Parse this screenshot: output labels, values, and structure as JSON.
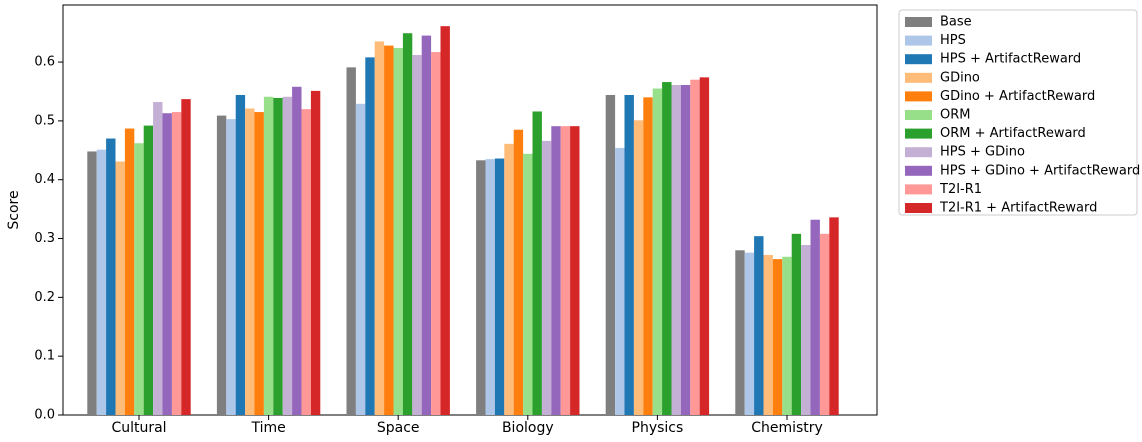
{
  "chart_data": {
    "type": "bar",
    "ylabel": "Score",
    "categories": [
      "Cultural",
      "Time",
      "Space",
      "Biology",
      "Physics",
      "Chemistry"
    ],
    "ylim": [
      0,
      0.697
    ],
    "yticks": [
      {
        "value": 0,
        "label": "0.0"
      },
      0.1,
      0.2,
      0.3,
      0.4,
      0.5,
      0.6
    ],
    "legend": "outside-upper-right",
    "series": [
      {
        "name": "Base",
        "color": "#7f7f7f",
        "values": [
          0.448,
          0.509,
          0.591,
          0.433,
          0.544,
          0.28
        ]
      },
      {
        "name": "HPS",
        "color": "#aec7e8",
        "values": [
          0.451,
          0.503,
          0.529,
          0.435,
          0.454,
          0.276
        ]
      },
      {
        "name": "HPS + ArtifactReward",
        "color": "#1f77b4",
        "values": [
          0.47,
          0.544,
          0.608,
          0.436,
          0.544,
          0.304
        ]
      },
      {
        "name": "GDino",
        "color": "#ffbb78",
        "values": [
          0.431,
          0.521,
          0.635,
          0.461,
          0.501,
          0.272
        ]
      },
      {
        "name": "GDino + ArtifactReward",
        "color": "#ff7f0e",
        "values": [
          0.487,
          0.515,
          0.628,
          0.485,
          0.54,
          0.265
        ]
      },
      {
        "name": "ORM",
        "color": "#98df8a",
        "values": [
          0.462,
          0.541,
          0.624,
          0.444,
          0.555,
          0.269
        ]
      },
      {
        "name": "ORM + ArtifactReward",
        "color": "#2ca02c",
        "values": [
          0.492,
          0.539,
          0.649,
          0.516,
          0.566,
          0.308
        ]
      },
      {
        "name": "HPS + GDino",
        "color": "#c5b0d5",
        "values": [
          0.532,
          0.541,
          0.612,
          0.466,
          0.561,
          0.289
        ]
      },
      {
        "name": "HPS + GDino + ArtifactReward",
        "color": "#9467bd",
        "values": [
          0.513,
          0.558,
          0.645,
          0.491,
          0.561,
          0.332
        ]
      },
      {
        "name": "T2I-R1",
        "color": "#ff9896",
        "values": [
          0.515,
          0.52,
          0.617,
          0.491,
          0.57,
          0.308
        ]
      },
      {
        "name": "T2I-R1 + ArtifactReward",
        "color": "#d62728",
        "values": [
          0.537,
          0.551,
          0.661,
          0.491,
          0.574,
          0.336
        ]
      }
    ]
  }
}
